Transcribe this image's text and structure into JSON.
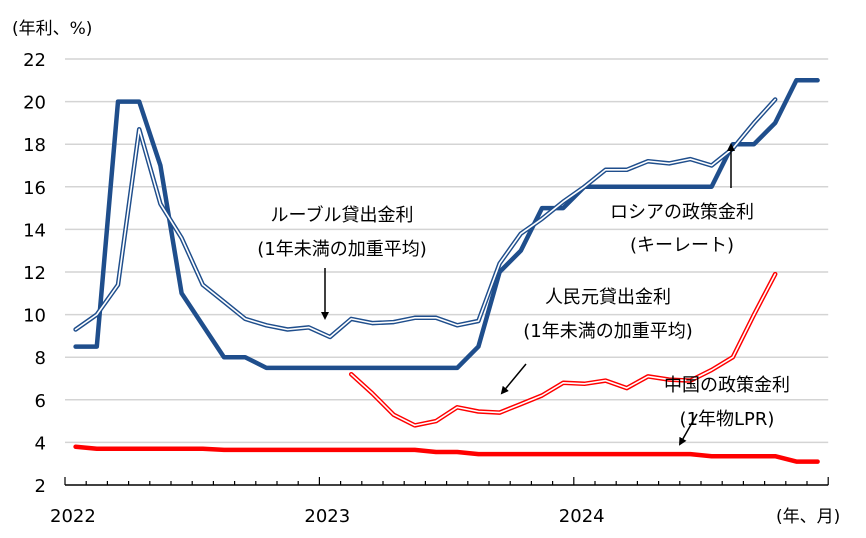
{
  "chart_data": {
    "type": "line",
    "title": "",
    "ylabel": "(年利、%)",
    "xlabel": "(年、月)",
    "ylim": [
      2,
      22
    ],
    "yticks": [
      2,
      4,
      6,
      8,
      10,
      12,
      14,
      16,
      18,
      20,
      22
    ],
    "ytick_labels": [
      "2",
      "4",
      "6",
      "8",
      "10",
      "12",
      "14",
      "16",
      "18",
      "20",
      "22"
    ],
    "x_start": "2022-01",
    "x_months": 36,
    "xtick_labels": [
      {
        "label": "2022",
        "month_index": 0
      },
      {
        "label": "2023",
        "month_index": 12
      },
      {
        "label": "2024",
        "month_index": 24
      }
    ],
    "grid": true,
    "series": [
      {
        "name": "ロシアの政策金利(キーレート)",
        "color": "#1f4e8c",
        "style": "thick",
        "start_index": 0,
        "values": [
          8.5,
          8.5,
          20,
          20,
          17,
          11,
          9.5,
          8,
          8,
          7.5,
          7.5,
          7.5,
          7.5,
          7.5,
          7.5,
          7.5,
          7.5,
          7.5,
          7.5,
          8.5,
          12,
          13,
          15,
          15,
          16,
          16,
          16,
          16,
          16,
          16,
          16,
          18,
          18,
          19,
          21,
          21
        ]
      },
      {
        "name": "ルーブル貸出金利(1年未満の加重平均)",
        "color": "#1f4e8c",
        "style": "double",
        "start_index": 0,
        "values": [
          9.3,
          10.0,
          11.4,
          18.7,
          15.2,
          13.6,
          11.4,
          10.6,
          9.8,
          9.5,
          9.3,
          9.4,
          8.95,
          9.8,
          9.6,
          9.65,
          9.85,
          9.85,
          9.5,
          9.7,
          12.4,
          13.8,
          14.5,
          15.3,
          16.0,
          16.8,
          16.8,
          17.2,
          17.1,
          17.3,
          17.0,
          17.8,
          19.0,
          20.1
        ]
      },
      {
        "name": "人民元貸出金利(1年未満の加重平均)",
        "color": "#ff0000",
        "style": "double",
        "start_index": 13,
        "values": [
          7.2,
          6.3,
          5.3,
          4.8,
          5.0,
          5.65,
          5.45,
          5.4,
          5.8,
          6.2,
          6.8,
          6.75,
          6.9,
          6.55,
          7.1,
          6.95,
          6.9,
          7.4,
          8.0,
          10.0,
          11.9
        ]
      },
      {
        "name": "中国の政策金利(1年物LPR)",
        "color": "#ff0000",
        "style": "thick",
        "start_index": 0,
        "values": [
          3.8,
          3.7,
          3.7,
          3.7,
          3.7,
          3.7,
          3.7,
          3.65,
          3.65,
          3.65,
          3.65,
          3.65,
          3.65,
          3.65,
          3.65,
          3.65,
          3.65,
          3.55,
          3.55,
          3.45,
          3.45,
          3.45,
          3.45,
          3.45,
          3.45,
          3.45,
          3.45,
          3.45,
          3.45,
          3.45,
          3.35,
          3.35,
          3.35,
          3.35,
          3.1,
          3.1
        ]
      }
    ],
    "annotations": [
      {
        "id": "ruble",
        "lines": [
          "ルーブル貸出金利",
          "(1年未満の加重平均)"
        ]
      },
      {
        "id": "key",
        "lines": [
          "ロシアの政策金利",
          "(キーレート)"
        ]
      },
      {
        "id": "yuan",
        "lines": [
          "人民元貸出金利",
          "(1年未満の加重平均)"
        ]
      },
      {
        "id": "lpr",
        "lines": [
          "中国の政策金利",
          "(1年物LPR)"
        ]
      }
    ]
  }
}
